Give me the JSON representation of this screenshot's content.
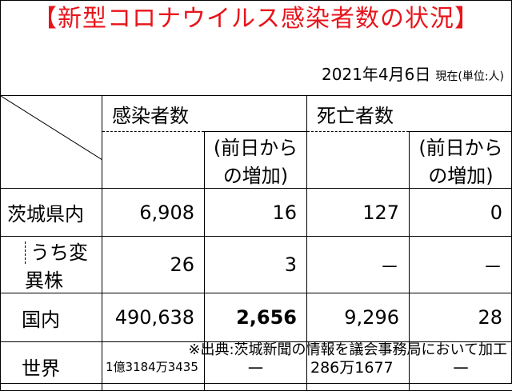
{
  "title": "【新型コロナウイルス感染者数の状況】",
  "date": "2021年4月6日",
  "date_suffix": "現在(単位:人)",
  "headers": {
    "infected": "感染者数",
    "infected_change": "(前日からの増加)",
    "deaths": "死亡者数",
    "deaths_change": "(前日からの増加)"
  },
  "rows": [
    {
      "label": "茨城県内",
      "infected": "6,908",
      "infected_change": "16",
      "deaths": "127",
      "deaths_change": "0"
    },
    {
      "label": "うち変異株",
      "infected": "26",
      "infected_change": "3",
      "deaths": "－",
      "deaths_change": "－"
    },
    {
      "label": "国内",
      "infected": "490,638",
      "infected_change": "2,656",
      "deaths": "9,296",
      "deaths_change": "28"
    },
    {
      "label": "世界",
      "infected": "1億3184万3435",
      "infected_change": "－",
      "deaths": "286万1677",
      "deaths_change": "－"
    }
  ],
  "footnote": "※出典:茨城新聞の情報を議会事務局において加工"
}
